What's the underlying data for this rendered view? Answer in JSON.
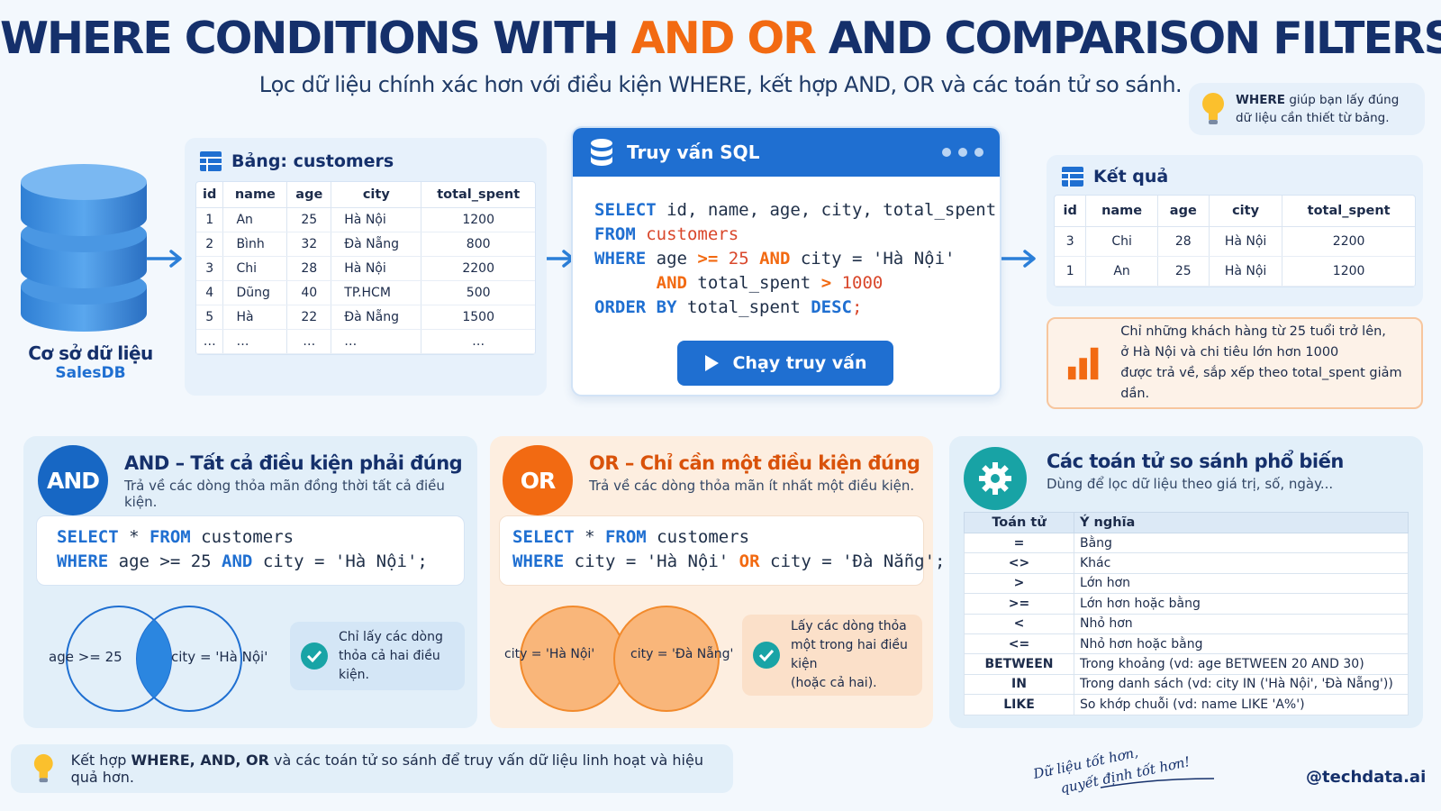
{
  "header": {
    "title_part1": "WHERE CONDITIONS WITH ",
    "title_and": "AND",
    "title_or": "OR",
    "title_part2": " AND COMPARISON FILTERS",
    "subtitle": "Lọc dữ liệu chính xác hơn với điều kiện WHERE, kết hợp AND, OR và các toán tử so sánh."
  },
  "tip": {
    "bold": "WHERE",
    "text1": " giúp bạn lấy đúng",
    "text2": "dữ liệu cần thiết từ bảng."
  },
  "database": {
    "label": "Cơ sở dữ liệu",
    "name": "SalesDB"
  },
  "customers": {
    "title": "Bảng: customers",
    "columns": [
      "id",
      "name",
      "age",
      "city",
      "total_spent"
    ],
    "rows": [
      [
        "1",
        "An",
        "25",
        "Hà Nội",
        "1200"
      ],
      [
        "2",
        "Bình",
        "32",
        "Đà Nẵng",
        "800"
      ],
      [
        "3",
        "Chi",
        "28",
        "Hà Nội",
        "2200"
      ],
      [
        "4",
        "Dũng",
        "40",
        "TP.HCM",
        "500"
      ],
      [
        "5",
        "Hà",
        "22",
        "Đà Nẵng",
        "1500"
      ],
      [
        "…",
        "…",
        "…",
        "…",
        "…"
      ]
    ]
  },
  "query": {
    "title": "Truy vấn SQL",
    "run_button": "Chạy truy vấn",
    "lines": [
      {
        "kw": "SELECT",
        "rest": " id, name, age, city, total_spent"
      },
      {
        "kw": "FROM",
        "rest": " customers"
      },
      {
        "kw": "WHERE",
        "rest": " age >= 25 AND city = 'Hà Nội'"
      },
      {
        "kw": "",
        "rest": "      AND total_spent > 1000"
      },
      {
        "kw": "ORDER BY",
        "rest": " total_spent DESC;"
      }
    ]
  },
  "result": {
    "title": "Kết quả",
    "columns": [
      "id",
      "name",
      "age",
      "city",
      "total_spent"
    ],
    "rows": [
      [
        "3",
        "Chi",
        "28",
        "Hà Nội",
        "2200"
      ],
      [
        "1",
        "An",
        "25",
        "Hà Nội",
        "1200"
      ]
    ],
    "note": [
      "Chỉ những khách hàng từ 25 tuổi trở lên,",
      "ở Hà Nội và chi tiêu lớn hơn 1000",
      "được trả về, sắp xếp theo total_spent giảm dần."
    ]
  },
  "and_section": {
    "badge": "AND",
    "title": "AND – Tất cả điều kiện phải đúng",
    "desc": "Trả về các dòng thỏa mãn đồng thời tất cả điều kiện.",
    "venn_left": "age >= 25",
    "venn_right": "city = 'Hà Nội'",
    "note1": "Chỉ lấy các dòng",
    "note2": "thỏa cả hai điều kiện."
  },
  "or_section": {
    "badge": "OR",
    "title": "OR – Chỉ cần một điều kiện đúng",
    "desc": "Trả về các dòng thỏa mãn ít nhất một điều kiện.",
    "venn_left": "city = 'Hà Nội'",
    "venn_right": "city = 'Đà Nẵng'",
    "note1": "Lấy các dòng thỏa",
    "note2": "một trong hai điều kiện",
    "note3": "(hoặc cả hai)."
  },
  "operators": {
    "title": "Các toán tử so sánh phổ biến",
    "desc": "Dùng để lọc dữ liệu theo giá trị, số, ngày...",
    "col_op": "Toán tử",
    "col_meaning": "Ý nghĩa",
    "rows": [
      [
        "=",
        "Bằng"
      ],
      [
        "<>",
        "Khác"
      ],
      [
        ">",
        "Lớn hơn"
      ],
      [
        ">=",
        "Lớn hơn hoặc bằng"
      ],
      [
        "<",
        "Nhỏ hơn"
      ],
      [
        "<=",
        "Nhỏ hơn hoặc bằng"
      ],
      [
        "BETWEEN",
        "Trong khoảng (vd: age BETWEEN 20 AND 30)"
      ],
      [
        "IN",
        "Trong danh sách (vd: city IN ('Hà Nội', 'Đà Nẵng'))"
      ],
      [
        "LIKE",
        "So khớp chuỗi (vd: name LIKE 'A%')"
      ]
    ]
  },
  "footer": {
    "text_pre": "Kết hợp ",
    "text_bold": "WHERE, AND, OR",
    "text_post": " và các toán tử so sánh để truy vấn dữ liệu linh hoạt và hiệu quả hơn.",
    "slogan1": "Dữ liệu tốt hơn,",
    "slogan2": "quyết định tốt hơn!",
    "handle": "@techdata.ai"
  },
  "colors": {
    "navy": "#15306b",
    "orange": "#f26a12",
    "blue": "#1f6fd1",
    "teal": "#19a4a6"
  }
}
